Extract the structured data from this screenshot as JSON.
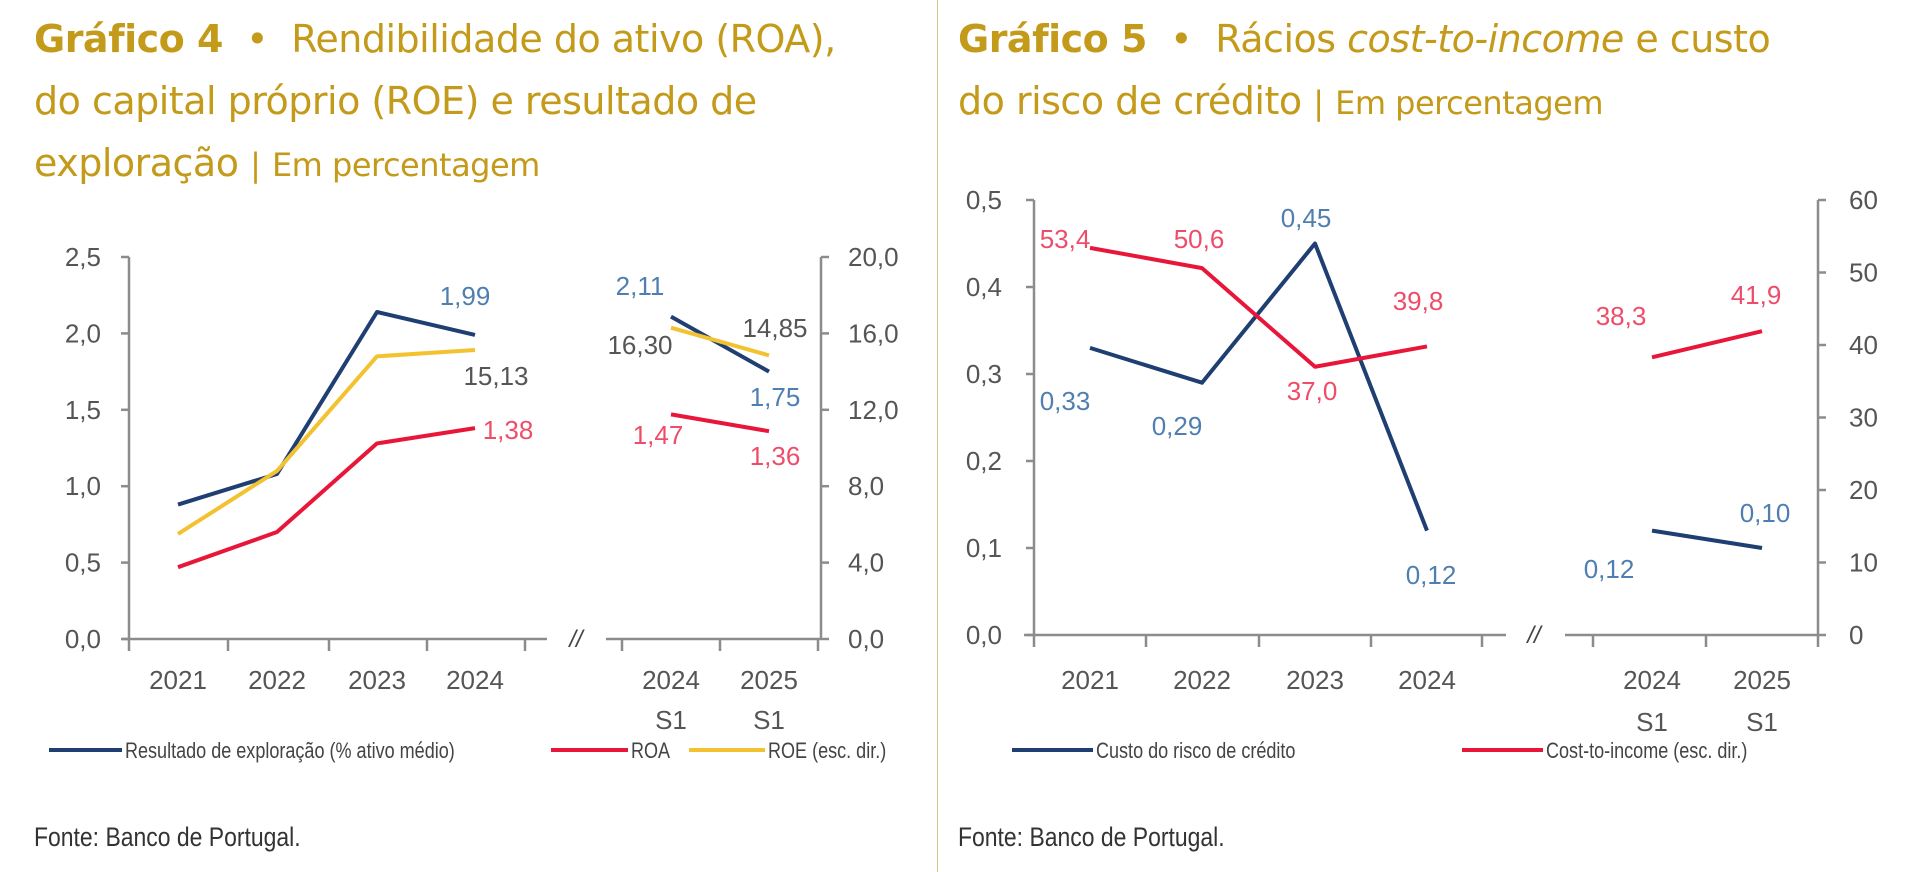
{
  "colors": {
    "title": "#C49A1A",
    "navy": "#1F3F73",
    "red": "#E8173A",
    "yellow": "#F2C230",
    "label_blue": "#4E7FB0",
    "label_red": "#EE4D6A",
    "label_gray": "#555555",
    "axis": "#8C8C8C"
  },
  "chart4": {
    "title_bold": "Gráfico 4",
    "title_bullet": "•",
    "title_line1": "Rendibilidade do ativo (ROA),",
    "title_line2": "do capital próprio (ROE) e resultado de",
    "title_line3": "exploração",
    "title_sep": "|",
    "title_unit": "Em percentagem",
    "source": "Fonte: Banco de Portugal."
  },
  "chart5": {
    "title_bold": "Gráfico 5",
    "title_bullet": "•",
    "title_pre": "Rácios",
    "title_italic": "cost-to-income",
    "title_post": "e custo",
    "title_line2": "do risco de crédito",
    "title_sep": "|",
    "title_unit": "Em percentagem",
    "source": "Fonte: Banco de Portugal."
  },
  "chart_data": [
    {
      "type": "line",
      "title": "Rendibilidade do ativo (ROA), do capital próprio (ROE) e resultado de exploração",
      "categories_annual": [
        "2021",
        "2022",
        "2023",
        "2024"
      ],
      "categories_semester": [
        [
          "2024",
          "S1"
        ],
        [
          "2025",
          "S1"
        ]
      ],
      "axis_break": "//",
      "y_left": {
        "ylim": [
          0,
          2.5
        ],
        "ticks": [
          "0,0",
          "0,5",
          "1,0",
          "1,5",
          "2,0",
          "2,5"
        ]
      },
      "y_right": {
        "ylim": [
          0,
          20
        ],
        "ticks": [
          "0,0",
          "4,0",
          "8,0",
          "12,0",
          "16,0",
          "20,0"
        ]
      },
      "series": [
        {
          "name": "Resultado de exploração (% ativo médio)",
          "axis": "left",
          "color": "navy",
          "annual": [
            0.88,
            1.08,
            2.14,
            1.99
          ],
          "semester": [
            2.11,
            1.75
          ],
          "labels": {
            "annual": [
              null,
              null,
              null,
              "1,99"
            ],
            "semester": [
              "2,11",
              "1,75"
            ]
          }
        },
        {
          "name": "ROA",
          "axis": "left",
          "color": "red",
          "annual": [
            0.47,
            0.7,
            1.28,
            1.38
          ],
          "semester": [
            1.47,
            1.36
          ],
          "labels": {
            "annual": [
              null,
              null,
              null,
              "1,38"
            ],
            "semester": [
              "1,47",
              "1,36"
            ]
          }
        },
        {
          "name": "ROE (esc. dir.)",
          "axis": "right",
          "color": "yellow",
          "annual": [
            5.5,
            8.8,
            14.8,
            15.13
          ],
          "semester": [
            16.3,
            14.85
          ],
          "labels": {
            "annual": [
              null,
              null,
              null,
              "15,13"
            ],
            "semester": [
              "16,30",
              "14,85"
            ]
          }
        }
      ],
      "legend": "bottom"
    },
    {
      "type": "line",
      "title": "Rácios cost-to-income e custo do risco de crédito",
      "categories_annual": [
        "2021",
        "2022",
        "2023",
        "2024"
      ],
      "categories_semester": [
        [
          "2024",
          "S1"
        ],
        [
          "2025",
          "S1"
        ]
      ],
      "axis_break": "//",
      "y_left": {
        "ylim": [
          0,
          0.5
        ],
        "ticks": [
          "0,0",
          "0,1",
          "0,2",
          "0,3",
          "0,4",
          "0,5"
        ]
      },
      "y_right": {
        "ylim": [
          0,
          60
        ],
        "ticks": [
          "0",
          "10",
          "20",
          "30",
          "40",
          "50",
          "60"
        ]
      },
      "series": [
        {
          "name": "Custo do risco de crédito",
          "axis": "left",
          "color": "navy",
          "annual": [
            0.33,
            0.29,
            0.45,
            0.12
          ],
          "semester": [
            0.12,
            0.1
          ],
          "labels": {
            "annual": [
              "0,33",
              "0,29",
              "0,45",
              "0,12"
            ],
            "semester": [
              "0,12",
              "0,10"
            ]
          }
        },
        {
          "name": "Cost-to-income (esc. dir.)",
          "axis": "right",
          "color": "red",
          "annual": [
            53.4,
            50.6,
            37.0,
            39.8
          ],
          "semester": [
            38.3,
            41.9
          ],
          "labels": {
            "annual": [
              "53,4",
              "50,6",
              "37,0",
              "39,8"
            ],
            "semester": [
              "38,3",
              "41,9"
            ]
          }
        }
      ],
      "legend": "bottom"
    }
  ]
}
